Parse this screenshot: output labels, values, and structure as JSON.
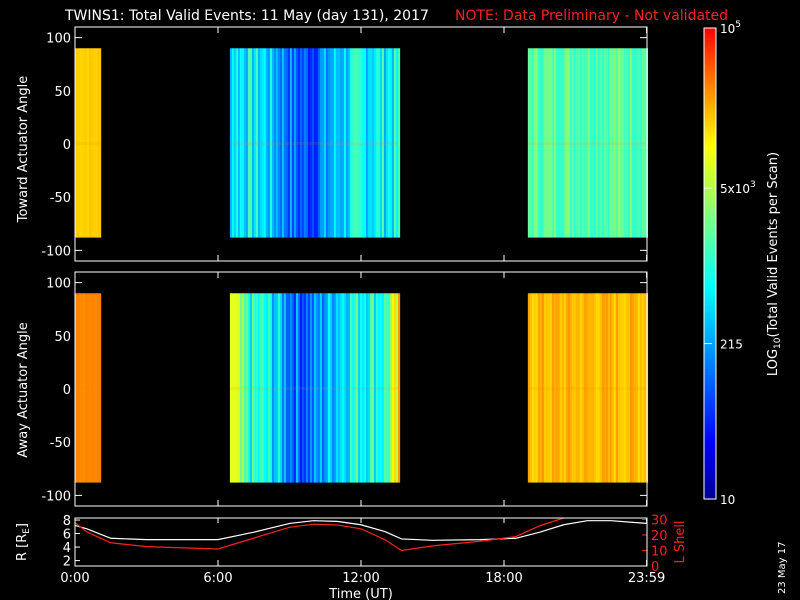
{
  "title": "TWINS1: Total Valid Events: 11 May (day 131), 2017",
  "note": "NOTE: Data Preliminary - Not validated",
  "stamp": "23 May 17",
  "colors": {
    "note": "#ff2020",
    "lshell": "#ff2020",
    "radius": "#ffffff"
  },
  "chart_data": [
    {
      "type": "heatmap",
      "name": "toward",
      "ylabel": "Toward Actuator Angle",
      "ylim": [
        -110,
        110
      ],
      "yticks": [
        100,
        50,
        0,
        -50,
        -100
      ],
      "xlim": [
        0,
        24
      ],
      "data_ylim": [
        -88,
        90
      ],
      "segments": [
        {
          "start": 0.0,
          "end": 1.05,
          "level": 0.8,
          "variation": 0.01
        },
        {
          "start": 6.5,
          "end": 13.55,
          "level": 0.45,
          "variation": 0.11,
          "dip_center": 9.6,
          "dip_depth": 0.22,
          "dip_width": 1.3
        },
        {
          "start": 19.0,
          "end": 23.98,
          "level": 0.56,
          "variation": 0.06
        }
      ]
    },
    {
      "type": "heatmap",
      "name": "away",
      "ylabel": "Away Actuator Angle",
      "ylim": [
        -110,
        110
      ],
      "yticks": [
        100,
        50,
        0,
        -50,
        -100
      ],
      "xlim": [
        0,
        24
      ],
      "data_ylim": [
        -88,
        90
      ],
      "segments": [
        {
          "start": 0.0,
          "end": 1.05,
          "level": 0.87,
          "variation": 0.01
        },
        {
          "start": 6.5,
          "end": 13.55,
          "level": 0.5,
          "variation": 0.12,
          "dip_center": 9.6,
          "dip_depth": 0.24,
          "dip_width": 1.3,
          "edge_boost": 0.25
        },
        {
          "start": 19.0,
          "end": 23.98,
          "level": 0.82,
          "variation": 0.04
        }
      ]
    },
    {
      "type": "line",
      "name": "orbit",
      "xlabel": "Time (UT)",
      "xticks": [
        "0:00",
        "6:00",
        "12:00",
        "18:00",
        "23:59"
      ],
      "xtick_values": [
        0,
        6,
        12,
        18,
        23.983
      ],
      "ylabel_left": "R [R",
      "ylabel_left_sub": "E",
      "ylabel_left_end": "]",
      "yticks_left": [
        8,
        6,
        4,
        2
      ],
      "ylim_left": [
        1.2,
        8.3
      ],
      "ylabel_right": "L Shell",
      "yticks_right": [
        30,
        20,
        10,
        0
      ],
      "ylim_right": [
        0,
        31
      ],
      "series": [
        {
          "axis": "left",
          "x": [
            0,
            0.5,
            1.5,
            3,
            6,
            7.5,
            9,
            10,
            11,
            12,
            13,
            13.7,
            15,
            17,
            18.5,
            19.5,
            20.5,
            21.5,
            22.5,
            23.98
          ],
          "y": [
            7.2,
            6.7,
            5.3,
            5.1,
            5.1,
            6.2,
            7.5,
            7.9,
            7.8,
            7.3,
            6.3,
            5.2,
            5.0,
            5.1,
            5.3,
            6.2,
            7.3,
            7.9,
            7.9,
            7.5
          ]
        },
        {
          "axis": "right",
          "x": [
            0,
            0.5,
            1.5,
            3,
            6,
            7.5,
            9,
            10,
            11,
            12,
            13,
            13.7,
            15,
            17,
            18.5,
            19.5,
            20.5
          ],
          "y": [
            28,
            22,
            15,
            12.5,
            11,
            18,
            25,
            27,
            26.5,
            24,
            17,
            10,
            13,
            16,
            19,
            26,
            31
          ]
        }
      ]
    }
  ],
  "colorbar": {
    "label_prefix": "LOG",
    "label_sub": "10",
    "label_suffix": "(Total Valid Events per Scan)",
    "ticks": [
      {
        "base": "10",
        "exp": "5",
        "frac": 1.0
      },
      {
        "base": "5x10",
        "exp": "3",
        "frac": 0.66
      },
      {
        "base": "215",
        "exp": "",
        "frac": 0.33
      },
      {
        "base": "10",
        "exp": "",
        "frac": 0.0
      }
    ]
  }
}
